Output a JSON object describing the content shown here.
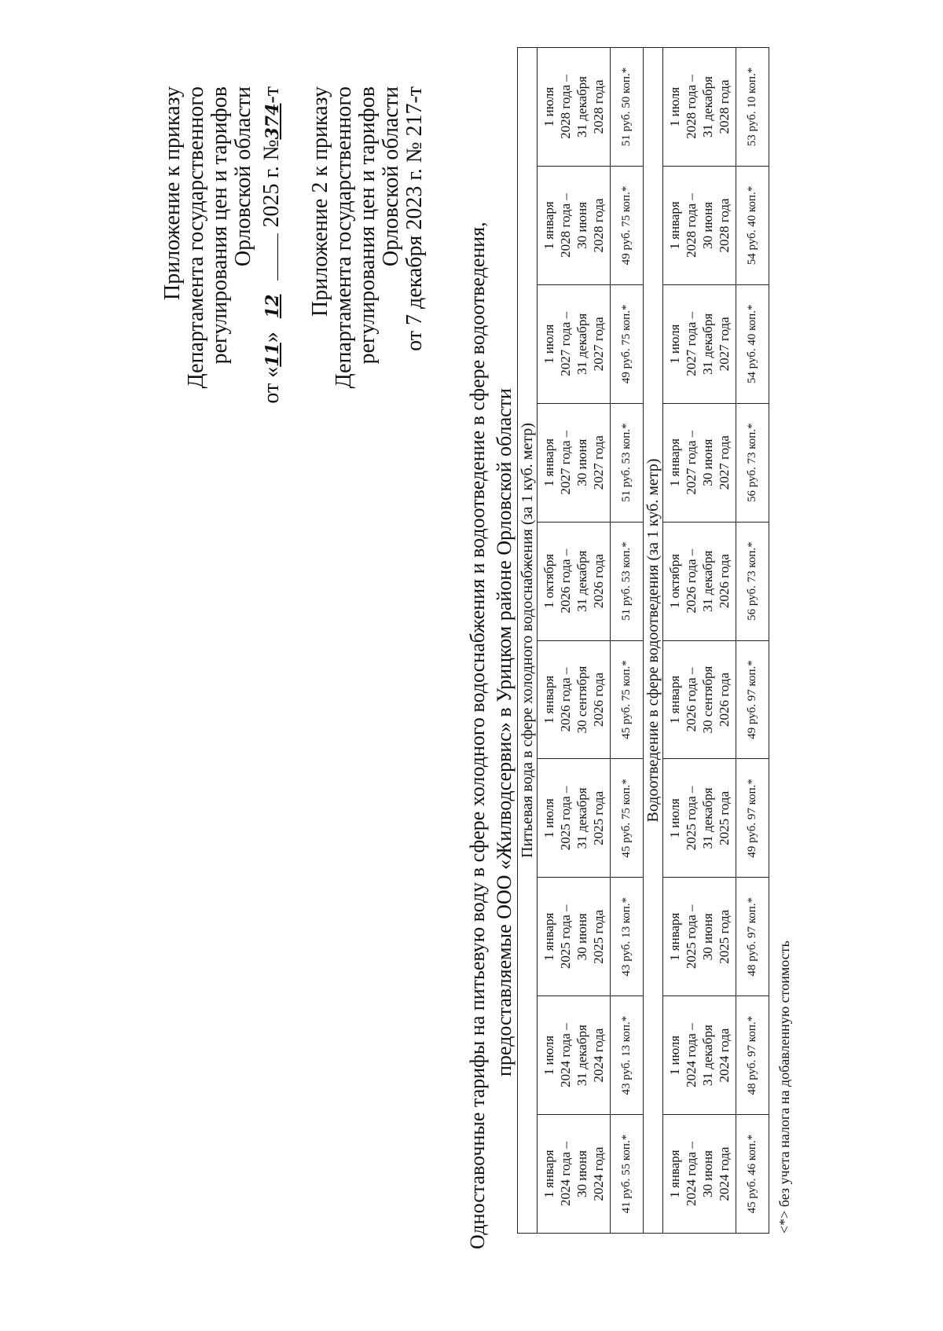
{
  "header1": {
    "lines": [
      "Приложение к приказу",
      "Департамента государственного",
      "регулирования цен и тарифов",
      "Орловской области"
    ],
    "date_prefix": "от «",
    "day_handwritten": "11",
    "date_mid": "»",
    "month_handwritten": "12",
    "year_text": "2025 г. №",
    "number_handwritten": "374",
    "number_suffix": "-т"
  },
  "header2": {
    "lines": [
      "Приложение 2 к приказу",
      "Департамента государственного",
      "регулирования цен и тарифов",
      "Орловской области",
      "от 7 декабря 2023 г. № 217-т"
    ]
  },
  "title": {
    "line1": "Одноставочные тарифы на питьевую воду в сфере холодного водоснабжения и водоотведение в сфере водоотведения,",
    "line2": "предоставляемые ООО «Жилводсервис» в Урицком районе Орловской области"
  },
  "table": {
    "periods": [
      [
        "1 января",
        "2024 года –",
        "30 июня",
        "2024 года"
      ],
      [
        "1 июля",
        "2024 года –",
        "31 декабря",
        "2024 года"
      ],
      [
        "1 января",
        "2025 года –",
        "30 июня",
        "2025 года"
      ],
      [
        "1 июля",
        "2025 года –",
        "31 декабря",
        "2025 года"
      ],
      [
        "1 января",
        "2026 года –",
        "30 сентября",
        "2026 года"
      ],
      [
        "1 октября",
        "2026 года –",
        "31 декабря",
        "2026 года"
      ],
      [
        "1 января",
        "2027 года –",
        "30 июня",
        "2027 года"
      ],
      [
        "1 июля",
        "2027 года –",
        "31 декабря",
        "2027 года"
      ],
      [
        "1 января",
        "2028 года –",
        "30 июня",
        "2028 года"
      ],
      [
        "1 июля",
        "2028 года –",
        "31 декабря",
        "2028 года"
      ]
    ],
    "sections": [
      {
        "title": "Питьевая вода в сфере холодного водоснабжения  (за 1 куб. метр)",
        "values": [
          "41 руб. 55 коп.*",
          "43 руб. 13 коп.*",
          "43 руб. 13 коп.*",
          "45 руб. 75 коп.*",
          "45 руб. 75 коп.*",
          "51 руб. 53 коп.*",
          "51 руб. 53 коп.*",
          "49 руб. 75 коп.*",
          "49 руб. 75 коп.*",
          "51 руб. 50 коп.*"
        ]
      },
      {
        "title": "Водоотведение в сфере водоотведения (за 1 куб. метр)",
        "values": [
          "45 руб. 46 коп.*",
          "48 руб. 97 коп.*",
          "48 руб. 97 коп.*",
          "49 руб. 97 коп.*",
          "49 руб. 97 коп.*",
          "56 руб. 73 коп.*",
          "56 руб. 73 коп.*",
          "54 руб. 40 коп.*",
          "54 руб. 40 коп.*",
          "53 руб. 10 коп.*"
        ]
      }
    ]
  },
  "footnote": "<*> без учета налога на добавленную стоимость"
}
